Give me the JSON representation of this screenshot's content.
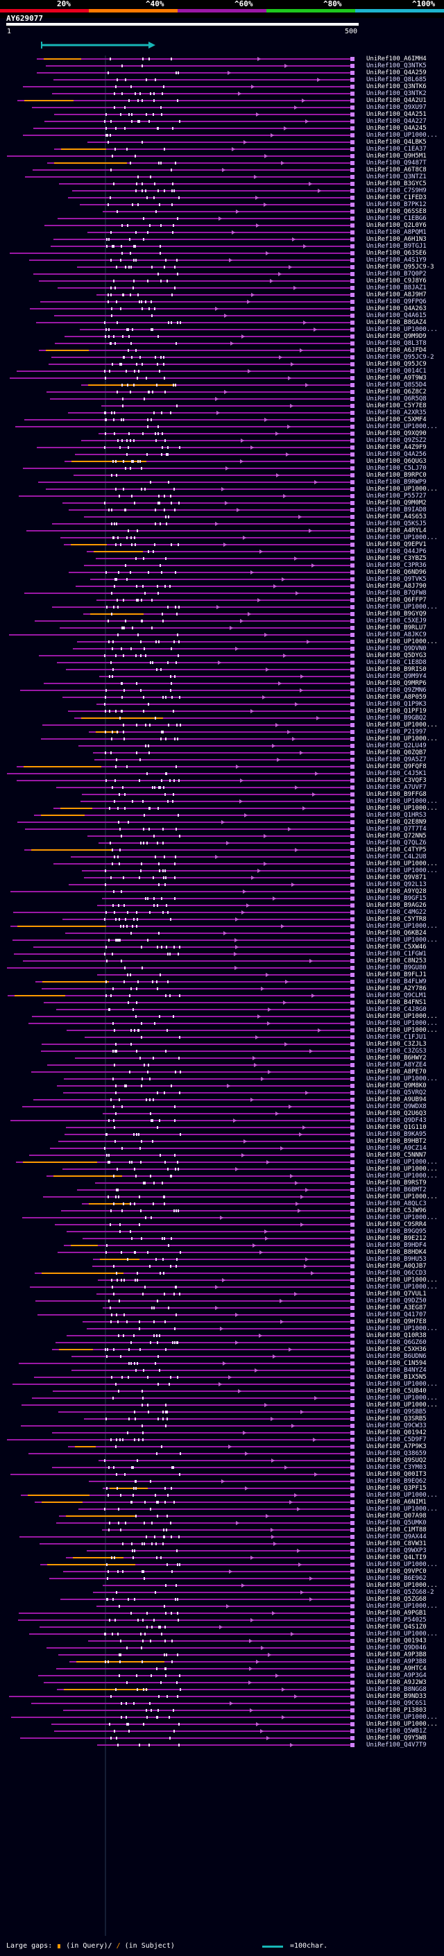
{
  "legend": {
    "labels": [
      "20%",
      "^40%",
      "^60%",
      "^80%",
      "^100%"
    ],
    "colors": [
      "#e8001e",
      "#ff7a00",
      "#9b18a6",
      "#1ec81e",
      "#1eb4cc"
    ]
  },
  "query": {
    "id": "AY629077",
    "start_label": "1",
    "end_label": "500"
  },
  "hits": [
    "UniRef100_A6IMH4",
    "UniRef100_Q3NTK5",
    "UniRef100_Q4A259",
    "UniRef100_Q8L685",
    "UniRef100_Q3NTK6",
    "UniRef100_Q3NTK2",
    "UniRef100_Q4A2U1",
    "UniRef100_Q9XU97",
    "UniRef100_Q4A251",
    "UniRef100_Q4A227",
    "UniRef100_Q4A245",
    "UniRef100_UP1000...",
    "UniRef100_Q4LBK5",
    "UniRef100_C1EA37",
    "UniRef100_Q9H5M1",
    "UniRef100_Q9487T",
    "UniRef100_A6T8C8",
    "UniRef100_Q3NTZ1",
    "UniRef100_B3GYC5",
    "UniRef100_C7S9H9",
    "UniRef100_C1FED3",
    "UniRef100_B7PK12",
    "UniRef100_Q6SSE8",
    "UniRef100_C1EBG6",
    "UniRef100_Q2L0Y6",
    "UniRef100_A8PQM1",
    "UniRef100_A6H1N3",
    "UniRef100_B9TGJ1",
    "UniRef100_Q63SE6",
    "UniRef100_A4S1Y9",
    "UniRef100_Q95JC9-3",
    "UniRef100_B7Q0P2",
    "UniRef100_C9J8Y6",
    "UniRef100_B8JAZ1",
    "UniRef100_A8J9H7",
    "UniRef100_Q9FPQ6",
    "UniRef100_Q4A263",
    "UniRef100_Q4A615",
    "UniRef100_B8GAZ4",
    "UniRef100_UP1000...",
    "UniRef100_Q9M9D9",
    "UniRef100_Q8L3T8",
    "UniRef100_A6JFD4",
    "UniRef100_Q95JC9-2",
    "UniRef100_Q95JC9",
    "UniRef100_Q014C1",
    "UniRef100_A9T9W3",
    "UniRef100_Q8S5D4",
    "UniRef100_Q6Z8C2",
    "UniRef100_Q6R5Q8",
    "UniRef100_C5Y7E8",
    "UniRef100_A2XR35",
    "UniRef100_C5XMF4",
    "UniRef100_UP1000...",
    "UniRef100_Q9XQ90",
    "UniRef100_Q9ZSZ2",
    "UniRef100_A4Z9F9",
    "UniRef100_Q4A256",
    "UniRef100_Q6QUG3",
    "UniRef100_C5LJ70",
    "UniRef100_B9RPC0",
    "UniRef100_B9RWP9",
    "UniRef100_UP1000...",
    "UniRef100_P55727",
    "UniRef100_Q9M0M2",
    "UniRef100_B9IAD8",
    "UniRef100_A4S653",
    "UniRef100_Q5KSJ5",
    "UniRef100_A4RYL4",
    "UniRef100_UP1000...",
    "UniRef100_Q9EPV1",
    "UniRef100_Q44JP6",
    "UniRef100_C3YBZ5",
    "UniRef100_C3PR36",
    "UniRef100_Q6ND96",
    "UniRef100_Q9TVK5",
    "UniRef100_A8J790",
    "UniRef100_B7QFW8",
    "UniRef100_Q6FFP7",
    "UniRef100_UP1000...",
    "UniRef100_B9GYQ9",
    "UniRef100_C5XEJ9",
    "UniRef100_B9RLU7",
    "UniRef100_A8JKC9",
    "UniRef100_UP1000...",
    "UniRef100_Q9DVN0",
    "UniRef100_Q5DYG3",
    "UniRef100_C1E8D8",
    "UniRef100_B9RIS0",
    "UniRef100_Q9M9Y4",
    "UniRef100_Q9MRP6",
    "UniRef100_Q9ZMN6",
    "UniRef100_A8P059",
    "UniRef100_Q1P9K3",
    "UniRef100_Q1PF19",
    "UniRef100_B9GBQ2",
    "UniRef100_UP1000...",
    "UniRef100_P21997",
    "UniRef100_UP1000...",
    "UniRef100_Q2LU49",
    "UniRef100_Q0ZQB7",
    "UniRef100_Q9A5Z7",
    "UniRef100_Q9FQF8",
    "UniRef100_C4J5K1",
    "UniRef100_C3VQF3",
    "UniRef100_A7UVF7",
    "UniRef100_B9FFG8",
    "UniRef100_UP1000...",
    "UniRef100_UP1000...",
    "UniRef100_Q1HRS3",
    "UniRef100_Q2E8N9",
    "UniRef100_Q7T7T4",
    "UniRef100_Q72NN5",
    "UniRef100_Q7QLZ6",
    "UniRef100_C4TYP5",
    "UniRef100_C4L2U8",
    "UniRef100_UP1000...",
    "UniRef100_UP1000...",
    "UniRef100_Q9V871",
    "UniRef100_Q92L13",
    "UniRef100_A9YQ28",
    "UniRef100_B9GF15",
    "UniRef100_B9AG26",
    "UniRef100_C4MG22",
    "UniRef100_C5YTR8",
    "UniRef100_UP1000...",
    "UniRef100_Q6KB24",
    "UniRef100_UP1000...",
    "UniRef100_C5XW46",
    "UniRef100_C1FGW1",
    "UniRef100_C8N253",
    "UniRef100_B9GU80",
    "UniRef100_B9FLJ1",
    "UniRef100_B4FLW9",
    "UniRef100_A2Y786",
    "UniRef100_Q9CLM1",
    "UniRef100_B4FNS1",
    "UniRef100_C4J8G0",
    "UniRef100_UP1000...",
    "UniRef100_UP1000...",
    "UniRef100_UP1000...",
    "UniRef100_C1FJU1",
    "UniRef100_C3ZJL3",
    "UniRef100_C3ZGS3",
    "UniRef100_B6HWY2",
    "UniRef100_A8YZE4",
    "UniRef100_A8PE70",
    "UniRef100_UP1000...",
    "UniRef100_Q9M8K0",
    "UniRef100_Q5VRQ2",
    "UniRef100_A9UB94",
    "UniRef100_Q9WDX8",
    "UniRef100_Q2U6Q3",
    "UniRef100_Q9DF43",
    "UniRef100_Q1G110",
    "UniRef100_B9KA95",
    "UniRef100_B9HBT2",
    "UniRef100_A9CZ14",
    "UniRef100_C5NNN7",
    "UniRef100_UP1000...",
    "UniRef100_UP1000...",
    "UniRef100_UP1000...",
    "UniRef100_B9RST9",
    "UniRef100_B6BMT2",
    "UniRef100_UP1000...",
    "UniRef100_A8QLC3",
    "UniRef100_C5JW96",
    "UniRef100_UP1000...",
    "UniRef100_C9SRR4",
    "UniRef100_B9GQ95",
    "UniRef100_B9E212",
    "UniRef100_B9HDF4",
    "UniRef100_B8HDK4",
    "UniRef100_B9HU53",
    "UniRef100_A0QJB7",
    "UniRef100_Q6CCD3",
    "UniRef100_UP1000...",
    "UniRef100_UP1000...",
    "UniRef100_Q7VUL1",
    "UniRef100_Q9DZ50",
    "UniRef100_A3EG87",
    "UniRef100_Q41707",
    "UniRef100_Q9H7E8",
    "UniRef100_UP1000...",
    "UniRef100_Q10R38",
    "UniRef100_Q6GZ60",
    "UniRef100_C5XH36",
    "UniRef100_B6UDN6",
    "UniRef100_C1N594",
    "UniRef100_B4NYZ4",
    "UniRef100_B1X5N5",
    "UniRef100_UP1000...",
    "UniRef100_C5UB40",
    "UniRef100_UP1000...",
    "UniRef100_UP1000...",
    "UniRef100_Q9SBB5",
    "UniRef100_Q3SRB5",
    "UniRef100_Q9CW33",
    "UniRef100_Q01942",
    "UniRef100_C5D9F7",
    "UniRef100_A7P9K3",
    "UniRef100_Q38659",
    "UniRef100_Q9SUQ2",
    "UniRef100_C3YM03",
    "UniRef100_Q00IT3",
    "UniRef100_B9EQ62",
    "UniRef100_Q3PF15",
    "UniRef100_UP1000...",
    "UniRef100_A6NIM1",
    "UniRef100_UP1000...",
    "UniRef100_Q07A98",
    "UniRef100_Q5UMK0",
    "UniRef100_C1MT88",
    "UniRef100_Q9AX44",
    "UniRef100_C8VW31",
    "UniRef100_Q9WXP3",
    "UniRef100_Q4LTI9",
    "UniRef100_UP1000...",
    "UniRef100_Q9VPC0",
    "UniRef100_B6E962",
    "UniRef100_UP1000...",
    "UniRef100_Q5ZG68-2",
    "UniRef100_Q5ZG68",
    "UniRef100_UP1000...",
    "UniRef100_A9PGB1",
    "UniRef100_P54025",
    "UniRef100_Q4S1Z0",
    "UniRef100_UP1000...",
    "UniRef100_Q01943",
    "UniRef100_Q9D046",
    "UniRef100_A9P3B8",
    "UniRef100_A9P3B8",
    "UniRef100_A9HTC4",
    "UniRef100_A9P3G4",
    "UniRef100_A9J2W3",
    "UniRef100_B8NGG8",
    "UniRef100_B9ND33",
    "UniRef100_Q9C6S1",
    "UniRef100_P13803",
    "UniRef100_UP1000...",
    "UniRef100_UP1000...",
    "UniRef100_Q5WB1Z",
    "UniRef100_Q9Y5W8",
    "UniRef100_Q4V7T9"
  ],
  "footer": {
    "large_gaps_label": "Large gaps:",
    "in_query_label": "(in Query)/",
    "in_subject_label": "(in Subject)",
    "scale_label": "=100char."
  }
}
